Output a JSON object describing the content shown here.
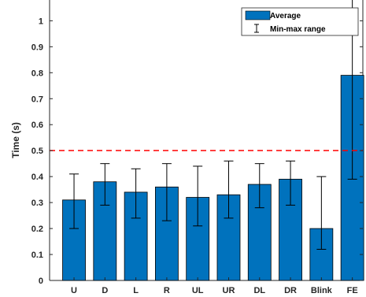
{
  "chart_data": {
    "type": "bar",
    "categories": [
      "U",
      "D",
      "L",
      "R",
      "UL",
      "UR",
      "DL",
      "DR",
      "Blink",
      "FE"
    ],
    "series": [
      {
        "name": "Average",
        "values": [
          0.31,
          0.38,
          0.34,
          0.36,
          0.32,
          0.33,
          0.37,
          0.39,
          0.2,
          0.79
        ],
        "min": [
          0.2,
          0.29,
          0.24,
          0.23,
          0.21,
          0.24,
          0.28,
          0.29,
          0.12,
          0.39
        ],
        "max": [
          0.41,
          0.45,
          0.43,
          0.45,
          0.44,
          0.46,
          0.45,
          0.46,
          0.4,
          1.09
        ]
      }
    ],
    "error_bar_label": "Min-max range",
    "ylabel": "Time (s)",
    "xlabel": "",
    "title": "",
    "ylim": [
      0,
      1.08
    ],
    "yticks": [
      "0",
      "0.1",
      "0.2",
      "0.3",
      "0.4",
      "0.5",
      "0.6",
      "0.7",
      "0.8",
      "0.9",
      "1"
    ],
    "threshold": 0.5,
    "legend_position": "top-right",
    "grid": false,
    "colors": {
      "bar": "#0072bd",
      "bar_edge": "#000000",
      "error_bar": "#000000",
      "threshold_line": "#ff0000",
      "axis": "#262626"
    }
  }
}
